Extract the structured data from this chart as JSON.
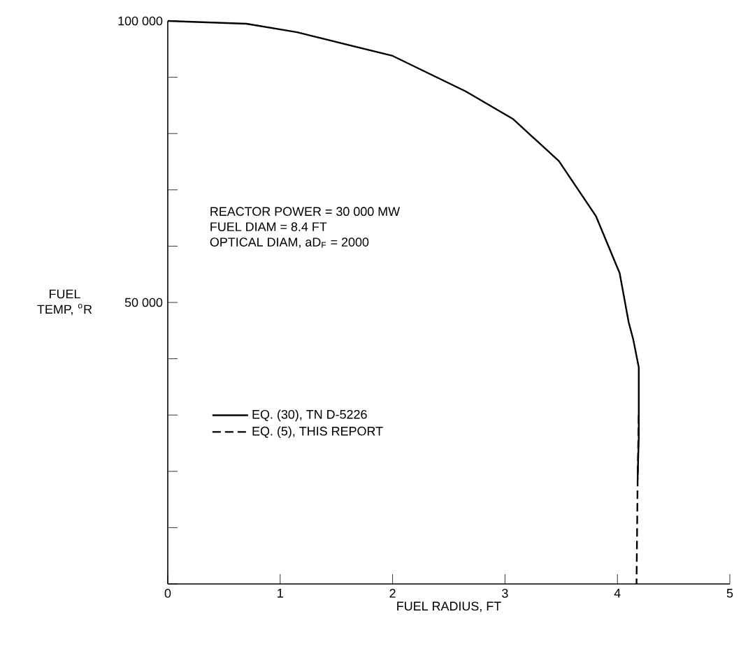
{
  "chart_data": {
    "type": "line",
    "xlabel": "FUEL RADIUS, FT",
    "ylabel": "FUEL TEMP, $^{o}$R",
    "xlim": [
      0,
      5
    ],
    "ylim": [
      0,
      100000
    ],
    "xticks": [
      0,
      1,
      2,
      3,
      4,
      5
    ],
    "yticks": [
      {
        "value": 0,
        "label": null
      },
      {
        "value": 10000,
        "label": null
      },
      {
        "value": 20000,
        "label": null
      },
      {
        "value": 30000,
        "label": null
      },
      {
        "value": 40000,
        "label": null
      },
      {
        "value": 50000,
        "label": "50 000"
      },
      {
        "value": 60000,
        "label": null
      },
      {
        "value": 70000,
        "label": null
      },
      {
        "value": 80000,
        "label": null
      },
      {
        "value": 90000,
        "label": null
      },
      {
        "value": 100000,
        "label": "100 000"
      }
    ],
    "grid": false,
    "legend": "bottom left",
    "marker": "none",
    "annotations": [
      "REACTOR POWER = 30 000 MW",
      "FUEL DIAM = 8.4 FT",
      "OPTICAL DIAM, aD$_{F}$ = 2000"
    ],
    "series": [
      {
        "name": "EQ. (30), TN D-5226",
        "color": "#000000",
        "line_style": "solid",
        "x": [
          0,
          0.7,
          1.15,
          2.0,
          2.65,
          3.07,
          3.48,
          3.81,
          4.02,
          4.1,
          4.14,
          4.19,
          4.19,
          4.18
        ],
        "values": [
          100000,
          99500,
          98000,
          93800,
          87500,
          82600,
          75100,
          65300,
          55200,
          46500,
          43500,
          38500,
          26000,
          18600
        ]
      },
      {
        "name": "EQ. (5), THIS REPORT",
        "color": "#000000",
        "line_style": "dashed",
        "x": [
          4.19,
          4.18,
          4.17
        ],
        "values": [
          30000,
          18600,
          0
        ]
      }
    ]
  }
}
